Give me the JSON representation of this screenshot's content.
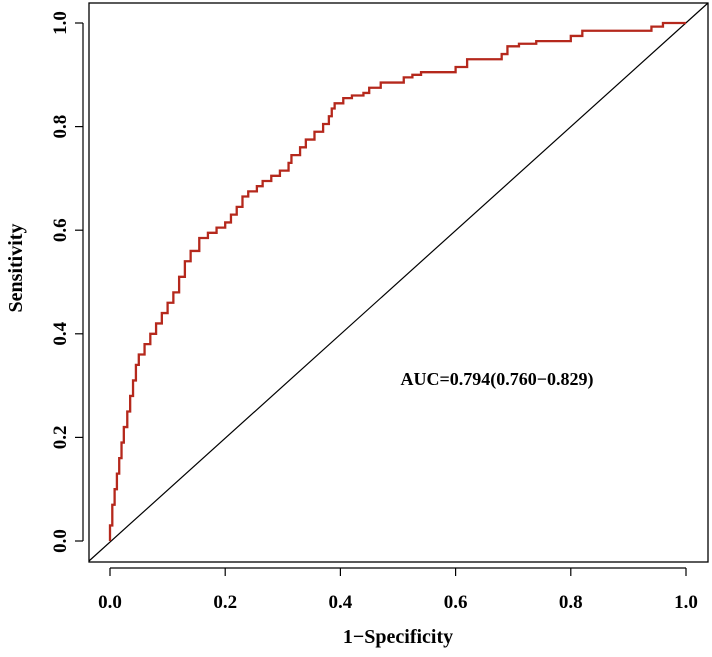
{
  "chart_data": {
    "type": "line",
    "title": "",
    "xlabel": "1−Specificity",
    "ylabel": "Sensitivity",
    "xlim": [
      0,
      1
    ],
    "ylim": [
      0,
      1
    ],
    "x_ticks": [
      "0.0",
      "0.2",
      "0.4",
      "0.6",
      "0.8",
      "1.0"
    ],
    "y_ticks": [
      "0.0",
      "0.2",
      "0.4",
      "0.6",
      "0.8",
      "1.0"
    ],
    "annotation": "AUC=0.794(0.760−0.829)",
    "grid": false,
    "legend": "none",
    "series": [
      {
        "color": "#b5281c",
        "points": [
          [
            0.0,
            0.0
          ],
          [
            0.0,
            0.03
          ],
          [
            0.004,
            0.03
          ],
          [
            0.004,
            0.07
          ],
          [
            0.008,
            0.07
          ],
          [
            0.008,
            0.1
          ],
          [
            0.012,
            0.1
          ],
          [
            0.012,
            0.13
          ],
          [
            0.016,
            0.13
          ],
          [
            0.016,
            0.16
          ],
          [
            0.02,
            0.16
          ],
          [
            0.02,
            0.19
          ],
          [
            0.024,
            0.19
          ],
          [
            0.024,
            0.22
          ],
          [
            0.03,
            0.22
          ],
          [
            0.03,
            0.25
          ],
          [
            0.035,
            0.25
          ],
          [
            0.035,
            0.28
          ],
          [
            0.04,
            0.28
          ],
          [
            0.04,
            0.31
          ],
          [
            0.045,
            0.31
          ],
          [
            0.045,
            0.34
          ],
          [
            0.05,
            0.34
          ],
          [
            0.05,
            0.36
          ],
          [
            0.06,
            0.36
          ],
          [
            0.06,
            0.38
          ],
          [
            0.07,
            0.38
          ],
          [
            0.07,
            0.4
          ],
          [
            0.08,
            0.4
          ],
          [
            0.08,
            0.42
          ],
          [
            0.09,
            0.42
          ],
          [
            0.09,
            0.44
          ],
          [
            0.1,
            0.44
          ],
          [
            0.1,
            0.46
          ],
          [
            0.11,
            0.46
          ],
          [
            0.11,
            0.48
          ],
          [
            0.12,
            0.48
          ],
          [
            0.12,
            0.51
          ],
          [
            0.13,
            0.51
          ],
          [
            0.13,
            0.54
          ],
          [
            0.14,
            0.54
          ],
          [
            0.14,
            0.56
          ],
          [
            0.155,
            0.56
          ],
          [
            0.155,
            0.585
          ],
          [
            0.17,
            0.585
          ],
          [
            0.17,
            0.595
          ],
          [
            0.185,
            0.595
          ],
          [
            0.185,
            0.605
          ],
          [
            0.2,
            0.605
          ],
          [
            0.2,
            0.615
          ],
          [
            0.21,
            0.615
          ],
          [
            0.21,
            0.63
          ],
          [
            0.22,
            0.63
          ],
          [
            0.22,
            0.645
          ],
          [
            0.23,
            0.645
          ],
          [
            0.23,
            0.665
          ],
          [
            0.24,
            0.665
          ],
          [
            0.24,
            0.675
          ],
          [
            0.255,
            0.675
          ],
          [
            0.255,
            0.685
          ],
          [
            0.265,
            0.685
          ],
          [
            0.265,
            0.695
          ],
          [
            0.28,
            0.695
          ],
          [
            0.28,
            0.705
          ],
          [
            0.295,
            0.705
          ],
          [
            0.295,
            0.715
          ],
          [
            0.31,
            0.715
          ],
          [
            0.31,
            0.73
          ],
          [
            0.315,
            0.73
          ],
          [
            0.315,
            0.745
          ],
          [
            0.33,
            0.745
          ],
          [
            0.33,
            0.76
          ],
          [
            0.34,
            0.76
          ],
          [
            0.34,
            0.775
          ],
          [
            0.355,
            0.775
          ],
          [
            0.355,
            0.79
          ],
          [
            0.37,
            0.79
          ],
          [
            0.37,
            0.805
          ],
          [
            0.38,
            0.805
          ],
          [
            0.38,
            0.82
          ],
          [
            0.385,
            0.82
          ],
          [
            0.385,
            0.835
          ],
          [
            0.39,
            0.835
          ],
          [
            0.39,
            0.845
          ],
          [
            0.405,
            0.845
          ],
          [
            0.405,
            0.855
          ],
          [
            0.42,
            0.855
          ],
          [
            0.42,
            0.86
          ],
          [
            0.44,
            0.86
          ],
          [
            0.44,
            0.865
          ],
          [
            0.45,
            0.865
          ],
          [
            0.45,
            0.875
          ],
          [
            0.47,
            0.875
          ],
          [
            0.47,
            0.885
          ],
          [
            0.51,
            0.885
          ],
          [
            0.51,
            0.895
          ],
          [
            0.525,
            0.895
          ],
          [
            0.525,
            0.9
          ],
          [
            0.54,
            0.9
          ],
          [
            0.54,
            0.905
          ],
          [
            0.6,
            0.905
          ],
          [
            0.6,
            0.915
          ],
          [
            0.62,
            0.915
          ],
          [
            0.62,
            0.93
          ],
          [
            0.68,
            0.93
          ],
          [
            0.68,
            0.94
          ],
          [
            0.69,
            0.94
          ],
          [
            0.69,
            0.955
          ],
          [
            0.71,
            0.955
          ],
          [
            0.71,
            0.96
          ],
          [
            0.74,
            0.96
          ],
          [
            0.74,
            0.965
          ],
          [
            0.8,
            0.965
          ],
          [
            0.8,
            0.975
          ],
          [
            0.82,
            0.975
          ],
          [
            0.82,
            0.985
          ],
          [
            0.94,
            0.985
          ],
          [
            0.94,
            0.993
          ],
          [
            0.96,
            0.993
          ],
          [
            0.96,
            1.0
          ],
          [
            1.0,
            1.0
          ]
        ]
      }
    ],
    "reference_line": {
      "color": "#000000",
      "points": [
        [
          0,
          0
        ],
        [
          1,
          1
        ]
      ]
    }
  }
}
